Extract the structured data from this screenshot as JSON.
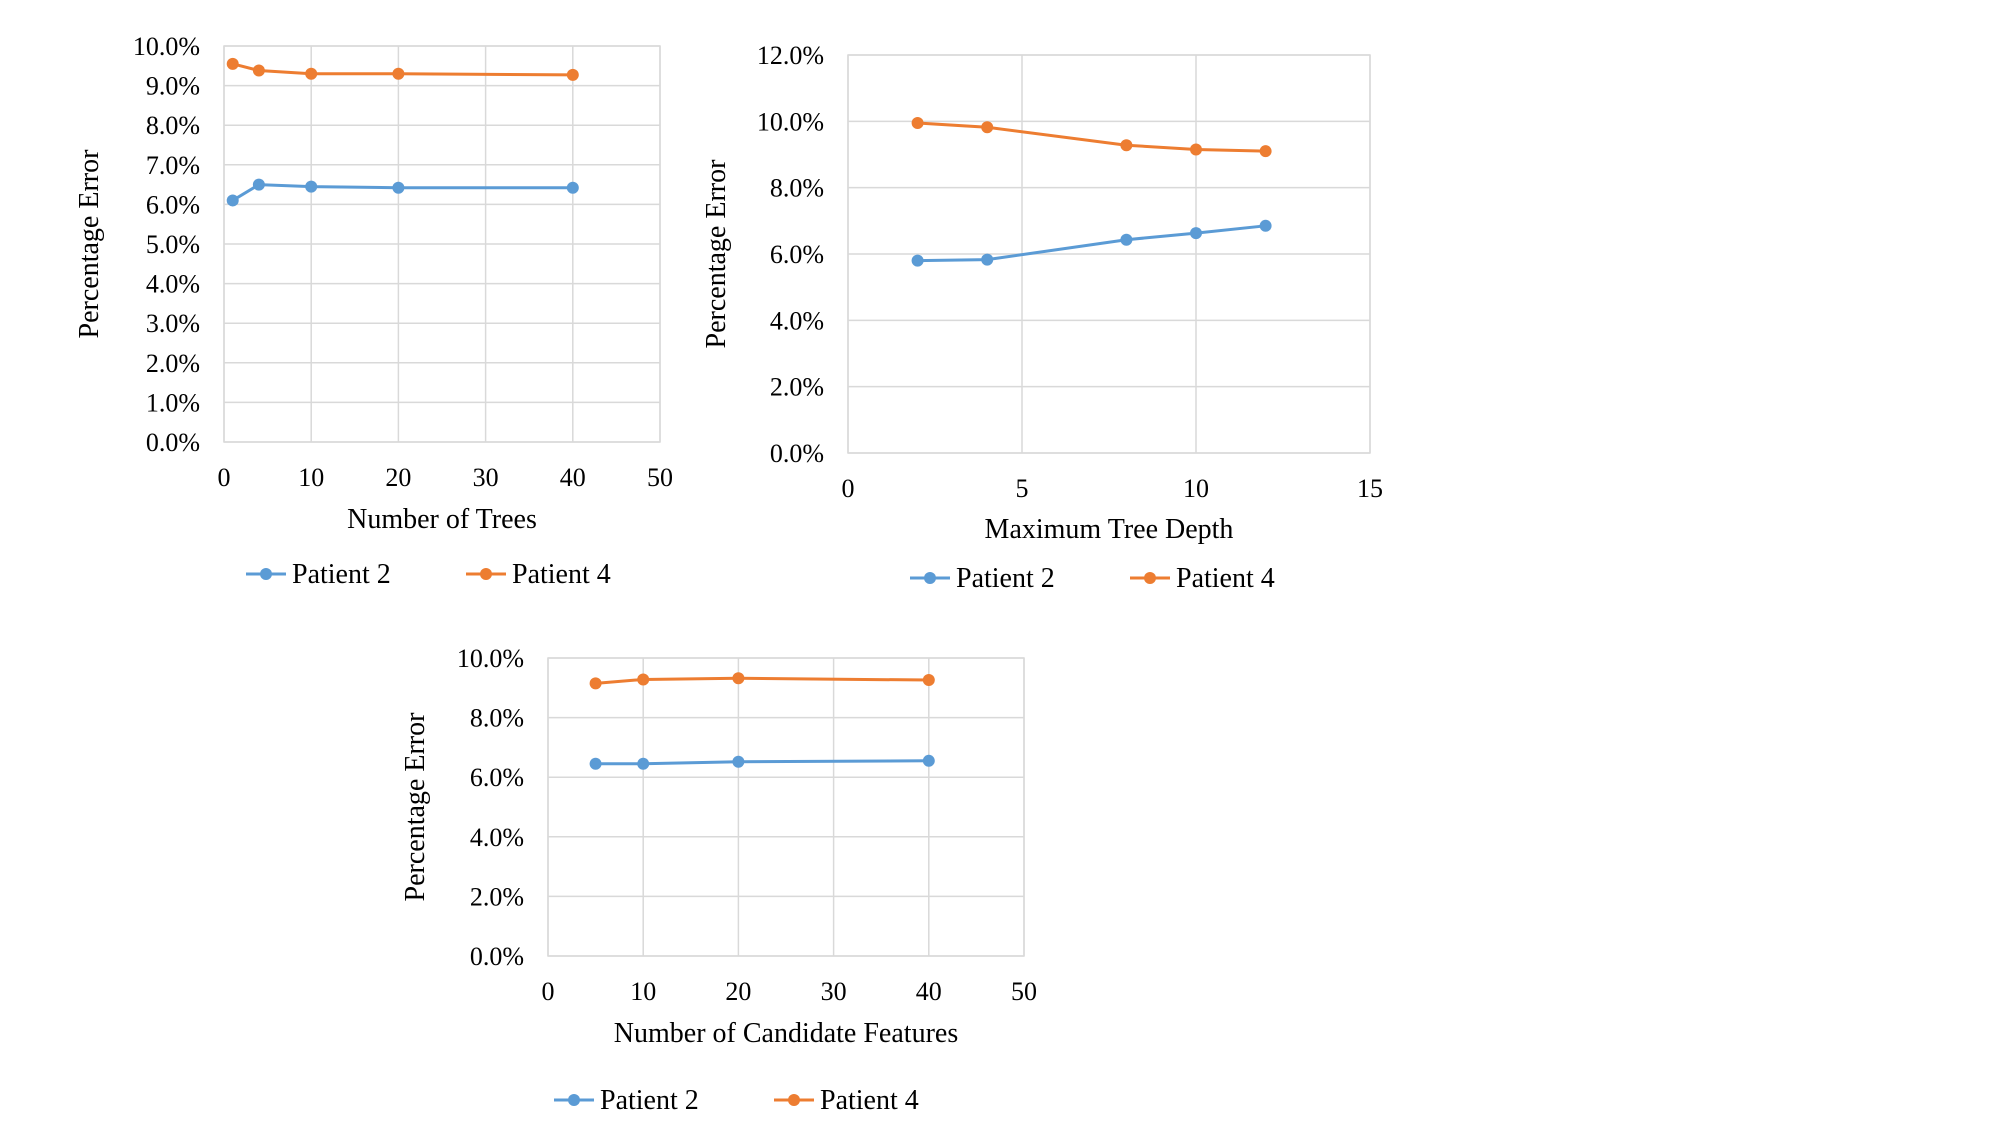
{
  "colors": {
    "patient2": "#5b9bd5",
    "patient4": "#ed7d31"
  },
  "chart_data": [
    {
      "type": "line",
      "xlabel": "Number of Trees",
      "ylabel": "Percentage Error",
      "xlim": [
        0,
        50
      ],
      "ylim": [
        0,
        0.1
      ],
      "xticks": [
        "0",
        "10",
        "20",
        "30",
        "40",
        "50"
      ],
      "yticks": [
        "0.0%",
        "1.0%",
        "2.0%",
        "3.0%",
        "4.0%",
        "5.0%",
        "6.0%",
        "7.0%",
        "8.0%",
        "9.0%",
        "10.0%"
      ],
      "grid": true,
      "legend": "bottom",
      "series": [
        {
          "name": "Patient 2",
          "color": "#5b9bd5",
          "x": [
            1,
            4,
            10,
            20,
            40
          ],
          "y": [
            0.061,
            0.065,
            0.0645,
            0.0642,
            0.0642
          ]
        },
        {
          "name": "Patient 4",
          "color": "#ed7d31",
          "x": [
            1,
            4,
            10,
            20,
            40
          ],
          "y": [
            0.0955,
            0.0938,
            0.093,
            0.093,
            0.0927
          ]
        }
      ]
    },
    {
      "type": "line",
      "xlabel": "Maximum Tree Depth",
      "ylabel": "Percentage Error",
      "xlim": [
        0,
        15
      ],
      "ylim": [
        0,
        0.12
      ],
      "xticks": [
        "0",
        "5",
        "10",
        "15"
      ],
      "yticks": [
        "0.0%",
        "2.0%",
        "4.0%",
        "6.0%",
        "8.0%",
        "10.0%",
        "12.0%"
      ],
      "grid": true,
      "legend": "bottom",
      "series": [
        {
          "name": "Patient 2",
          "color": "#5b9bd5",
          "x": [
            2,
            4,
            8,
            10,
            12
          ],
          "y": [
            0.058,
            0.0583,
            0.0643,
            0.0663,
            0.0685
          ]
        },
        {
          "name": "Patient 4",
          "color": "#ed7d31",
          "x": [
            2,
            4,
            8,
            10,
            12
          ],
          "y": [
            0.0995,
            0.0982,
            0.0928,
            0.0915,
            0.091
          ]
        }
      ]
    },
    {
      "type": "line",
      "xlabel": "Number of Candidate Features",
      "ylabel": "Percentage Error",
      "xlim": [
        0,
        50
      ],
      "ylim": [
        0,
        0.1
      ],
      "xticks": [
        "0",
        "10",
        "20",
        "30",
        "40",
        "50"
      ],
      "yticks": [
        "0.0%",
        "2.0%",
        "4.0%",
        "6.0%",
        "8.0%",
        "10.0%"
      ],
      "grid": true,
      "legend": "bottom",
      "series": [
        {
          "name": "Patient 2",
          "color": "#5b9bd5",
          "x": [
            5,
            10,
            20,
            40
          ],
          "y": [
            0.0645,
            0.0645,
            0.0652,
            0.0655
          ]
        },
        {
          "name": "Patient 4",
          "color": "#ed7d31",
          "x": [
            5,
            10,
            20,
            40
          ],
          "y": [
            0.0915,
            0.0928,
            0.0932,
            0.0926
          ]
        }
      ]
    }
  ]
}
